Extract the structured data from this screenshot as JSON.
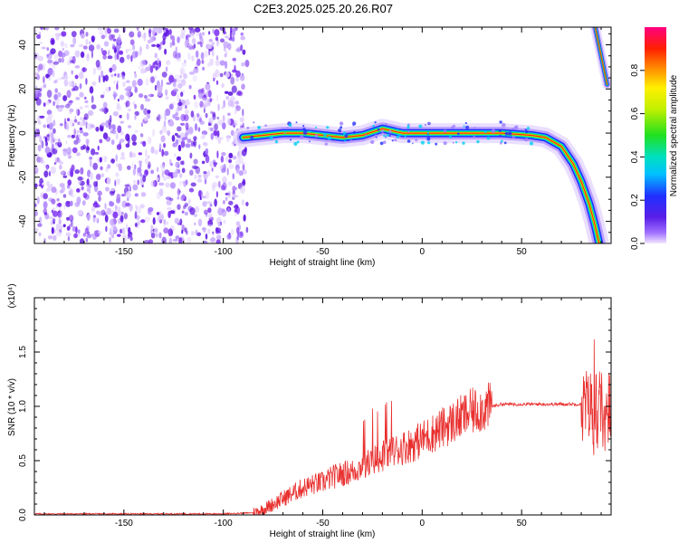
{
  "title": "C2E3.2025.025.20.26.R07",
  "colors": {
    "snr_line": "#e8302f",
    "noise_dots": "#7a2cf0",
    "background": "#ffffff"
  },
  "chart_data": [
    {
      "type": "heatmap",
      "xlabel": "Height of straight line (km)",
      "ylabel": "Frequency (Hz)",
      "xlim": [
        -195,
        95
      ],
      "ylim": [
        -50,
        48
      ],
      "xticks": [
        -150,
        -100,
        -50,
        0,
        50
      ],
      "yticks": [
        -40,
        -20,
        0,
        20,
        40
      ],
      "colorbar": {
        "label": "Normalized spectral amplitude",
        "range": [
          0.0,
          1.0
        ],
        "ticks": [
          "0.0",
          "0.2",
          "0.4",
          "0.6",
          "0.8"
        ],
        "colormap": "rainbow"
      },
      "noise_region_x": [
        -195,
        -88
      ],
      "ridge": [
        {
          "x": -90,
          "y": -2
        },
        {
          "x": -80,
          "y": -1
        },
        {
          "x": -70,
          "y": 0
        },
        {
          "x": -60,
          "y": 0
        },
        {
          "x": -50,
          "y": -1
        },
        {
          "x": -40,
          "y": -2
        },
        {
          "x": -30,
          "y": -1
        },
        {
          "x": -20,
          "y": 2
        },
        {
          "x": -10,
          "y": 0
        },
        {
          "x": 0,
          "y": 0
        },
        {
          "x": 20,
          "y": 0
        },
        {
          "x": 40,
          "y": 0
        },
        {
          "x": 55,
          "y": -1
        },
        {
          "x": 62,
          "y": -2
        },
        {
          "x": 70,
          "y": -6
        },
        {
          "x": 76,
          "y": -14
        },
        {
          "x": 80,
          "y": -22
        },
        {
          "x": 84,
          "y": -32
        },
        {
          "x": 87,
          "y": -42
        },
        {
          "x": 89,
          "y": -50
        }
      ],
      "wrap_ridge": [
        {
          "x": 87,
          "y": 48
        },
        {
          "x": 90,
          "y": 35
        },
        {
          "x": 93,
          "y": 22
        }
      ]
    },
    {
      "type": "line",
      "xlabel": "Height of straight line (km)",
      "ylabel": "SNR (10 * v/v)",
      "y_scale_label": "(x10⁴)",
      "xlim": [
        -195,
        95
      ],
      "ylim": [
        0.0,
        2.0
      ],
      "xticks": [
        -150,
        -100,
        -50,
        0,
        50
      ],
      "yticks": [
        "0.0",
        "0.5",
        "1.0",
        "1.5"
      ],
      "series": [
        {
          "values_description": "sampled envelope",
          "x": [
            -195,
            -150,
            -100,
            -85,
            -80,
            -75,
            -70,
            -65,
            -60,
            -55,
            -50,
            -45,
            -40,
            -35,
            -30,
            -25,
            -20,
            -15,
            -10,
            -5,
            0,
            5,
            10,
            15,
            20,
            25,
            30,
            35,
            40,
            50,
            60,
            70,
            80,
            85,
            88,
            90,
            92,
            94
          ],
          "y": [
            0.01,
            0.01,
            0.01,
            0.02,
            0.05,
            0.1,
            0.15,
            0.2,
            0.25,
            0.28,
            0.3,
            0.35,
            0.38,
            0.4,
            0.45,
            0.5,
            0.55,
            0.58,
            0.62,
            0.65,
            0.7,
            0.75,
            0.8,
            0.85,
            0.9,
            0.95,
            0.98,
            1.0,
            1.02,
            1.02,
            1.02,
            1.02,
            1.02,
            1.0,
            0.95,
            1.0,
            0.9,
            1.0
          ]
        }
      ]
    }
  ]
}
